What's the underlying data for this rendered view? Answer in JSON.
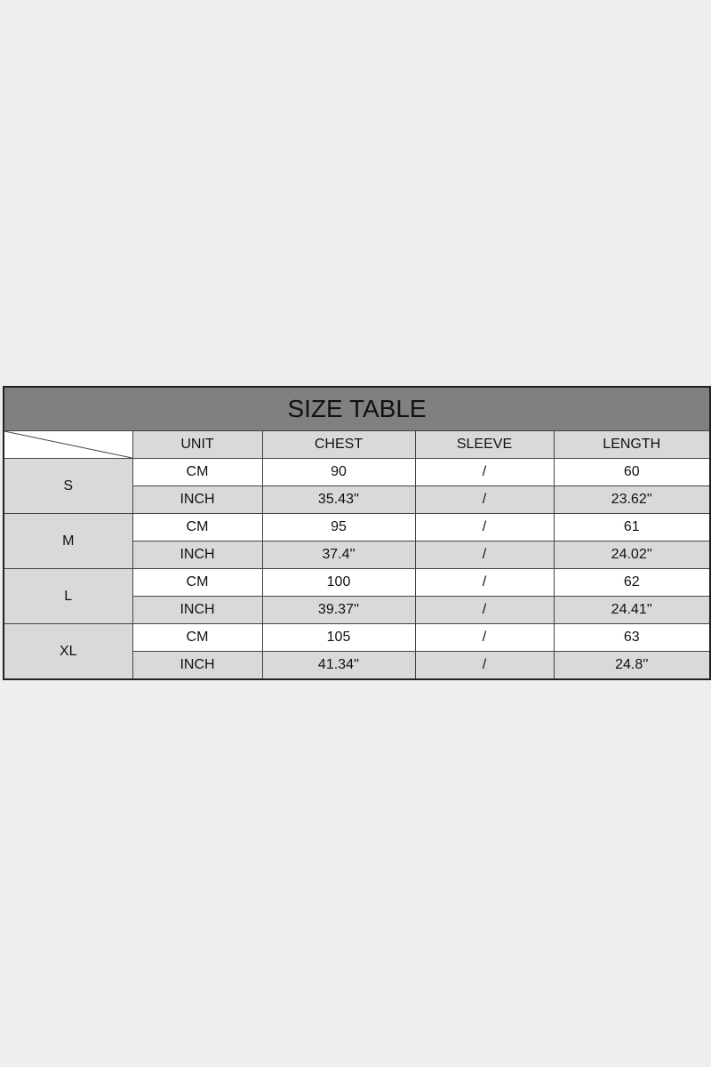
{
  "title": "SIZE TABLE",
  "headers": [
    "UNIT",
    "CHEST",
    "SLEEVE",
    "LENGTH"
  ],
  "sizes": [
    {
      "size": "S",
      "rows": [
        [
          "CM",
          "90",
          "/",
          "60"
        ],
        [
          "INCH",
          "35.43''",
          "/",
          "23.62''"
        ]
      ]
    },
    {
      "size": "M",
      "rows": [
        [
          "CM",
          "95",
          "/",
          "61"
        ],
        [
          "INCH",
          "37.4''",
          "/",
          "24.02''"
        ]
      ]
    },
    {
      "size": "L",
      "rows": [
        [
          "CM",
          "100",
          "/",
          "62"
        ],
        [
          "INCH",
          "39.37''",
          "/",
          "24.41''"
        ]
      ]
    },
    {
      "size": "XL",
      "rows": [
        [
          "CM",
          "105",
          "/",
          "63"
        ],
        [
          "INCH",
          "41.34''",
          "/",
          "24.8''"
        ]
      ]
    }
  ]
}
